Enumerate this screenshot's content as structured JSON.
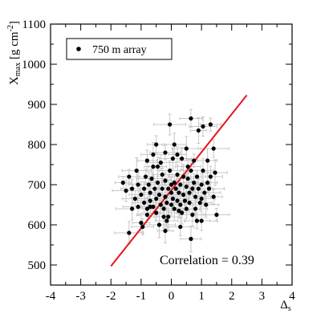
{
  "chart_data": {
    "type": "scatter",
    "title": "",
    "xlabel": {
      "main": "Δ",
      "sub": "s"
    },
    "ylabel": {
      "main": "X",
      "sub": "max",
      "unit_open": " [g cm",
      "unit_sup": "-2",
      "unit_close": "]"
    },
    "xlim": [
      -4,
      4
    ],
    "ylim": [
      450,
      1100
    ],
    "xticks": [
      -4,
      -3,
      -2,
      -1,
      0,
      1,
      2,
      3,
      4
    ],
    "yticks": [
      500,
      600,
      700,
      800,
      900,
      1000,
      1100
    ],
    "grid": false,
    "legend": {
      "position": "top-left",
      "label": "750 m array"
    },
    "annotation": "Correlation = 0.39",
    "colors": {
      "points": "#000000",
      "error_bars": "#c8c8c8",
      "fit_line": "#e8141c"
    },
    "fit_line": {
      "x": [
        -2.0,
        2.5
      ],
      "y": [
        497,
        923
      ]
    },
    "series": [
      {
        "name": "750 m array",
        "points": [
          [
            -1.6,
            705
          ],
          [
            -1.5,
            685
          ],
          [
            -1.4,
            720
          ],
          [
            -1.3,
            640
          ],
          [
            -1.2,
            665
          ],
          [
            -1.1,
            700
          ],
          [
            -1.1,
            645
          ],
          [
            -1.0,
            675
          ],
          [
            -1.0,
            605
          ],
          [
            -0.9,
            690
          ],
          [
            -0.9,
            655
          ],
          [
            -0.85,
            720
          ],
          [
            -0.8,
            640
          ],
          [
            -0.8,
            625
          ],
          [
            -0.75,
            700
          ],
          [
            -0.7,
            660
          ],
          [
            -0.7,
            680
          ],
          [
            -0.65,
            715
          ],
          [
            -0.6,
            645
          ],
          [
            -0.6,
            745
          ],
          [
            -0.55,
            690
          ],
          [
            -0.5,
            665
          ],
          [
            -0.5,
            630
          ],
          [
            -0.45,
            705
          ],
          [
            -0.4,
            675
          ],
          [
            -0.4,
            600
          ],
          [
            -0.35,
            650
          ],
          [
            -0.3,
            725
          ],
          [
            -0.3,
            690
          ],
          [
            -0.25,
            640
          ],
          [
            -0.2,
            670
          ],
          [
            -0.2,
            710
          ],
          [
            -0.15,
            655
          ],
          [
            -0.1,
            690
          ],
          [
            -0.1,
            620
          ],
          [
            -0.05,
            735
          ],
          [
            0.0,
            680
          ],
          [
            0.0,
            650
          ],
          [
            0.0,
            700
          ],
          [
            0.05,
            665
          ],
          [
            0.1,
            705
          ],
          [
            0.1,
            640
          ],
          [
            0.15,
            690
          ],
          [
            0.2,
            660
          ],
          [
            0.2,
            725
          ],
          [
            0.25,
            680
          ],
          [
            0.3,
            650
          ],
          [
            0.3,
            700
          ],
          [
            0.35,
            630
          ],
          [
            0.4,
            675
          ],
          [
            0.4,
            720
          ],
          [
            0.45,
            660
          ],
          [
            0.5,
            695
          ],
          [
            0.5,
            640
          ],
          [
            0.55,
            715
          ],
          [
            0.6,
            680
          ],
          [
            0.6,
            655
          ],
          [
            0.65,
            735
          ],
          [
            0.7,
            690
          ],
          [
            0.7,
            625
          ],
          [
            0.75,
            705
          ],
          [
            0.8,
            670
          ],
          [
            0.8,
            640
          ],
          [
            0.85,
            720
          ],
          [
            0.9,
            690
          ],
          [
            0.95,
            655
          ],
          [
            1.0,
            700
          ],
          [
            1.0,
            665
          ],
          [
            1.05,
            735
          ],
          [
            1.1,
            680
          ],
          [
            1.15,
            650
          ],
          [
            1.2,
            705
          ],
          [
            1.25,
            690
          ],
          [
            1.3,
            720
          ],
          [
            1.4,
            670
          ],
          [
            -1.4,
            580
          ],
          [
            -0.95,
            595
          ],
          [
            -0.2,
            585
          ],
          [
            0.3,
            595
          ],
          [
            0.65,
            565
          ],
          [
            1.0,
            610
          ],
          [
            1.5,
            625
          ],
          [
            -0.8,
            760
          ],
          [
            -0.2,
            780
          ],
          [
            0.1,
            800
          ],
          [
            0.2,
            775
          ],
          [
            0.5,
            790
          ],
          [
            0.65,
            865
          ],
          [
            0.9,
            835
          ],
          [
            1.05,
            845
          ],
          [
            1.3,
            850
          ],
          [
            -0.05,
            850
          ],
          [
            0.55,
            745
          ],
          [
            0.35,
            765
          ],
          [
            -0.35,
            755
          ],
          [
            -0.6,
            775
          ],
          [
            -0.5,
            800
          ],
          [
            -1.15,
            735
          ],
          [
            -1.3,
            690
          ],
          [
            -0.7,
            645
          ],
          [
            0.05,
            765
          ],
          [
            0.25,
            635
          ],
          [
            -0.25,
            620
          ],
          [
            0.85,
            610
          ],
          [
            1.2,
            760
          ],
          [
            1.4,
            790
          ],
          [
            1.45,
            730
          ],
          [
            -0.45,
            745
          ],
          [
            0.75,
            760
          ],
          [
            -0.15,
            610
          ]
        ]
      }
    ]
  }
}
